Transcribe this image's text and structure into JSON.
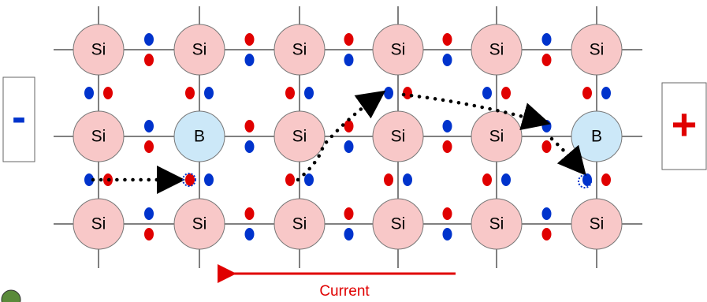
{
  "lattice": {
    "rows": [
      [
        "Si",
        "Si",
        "Si",
        "Si",
        "Si",
        "Si"
      ],
      [
        "Si",
        "B",
        "Si",
        "Si",
        "Si",
        "B"
      ],
      [
        "Si",
        "Si",
        "Si",
        "Si",
        "Si",
        "Si"
      ]
    ]
  },
  "terminals": {
    "negative": "-",
    "positive": "+"
  },
  "current_label": "Current"
}
